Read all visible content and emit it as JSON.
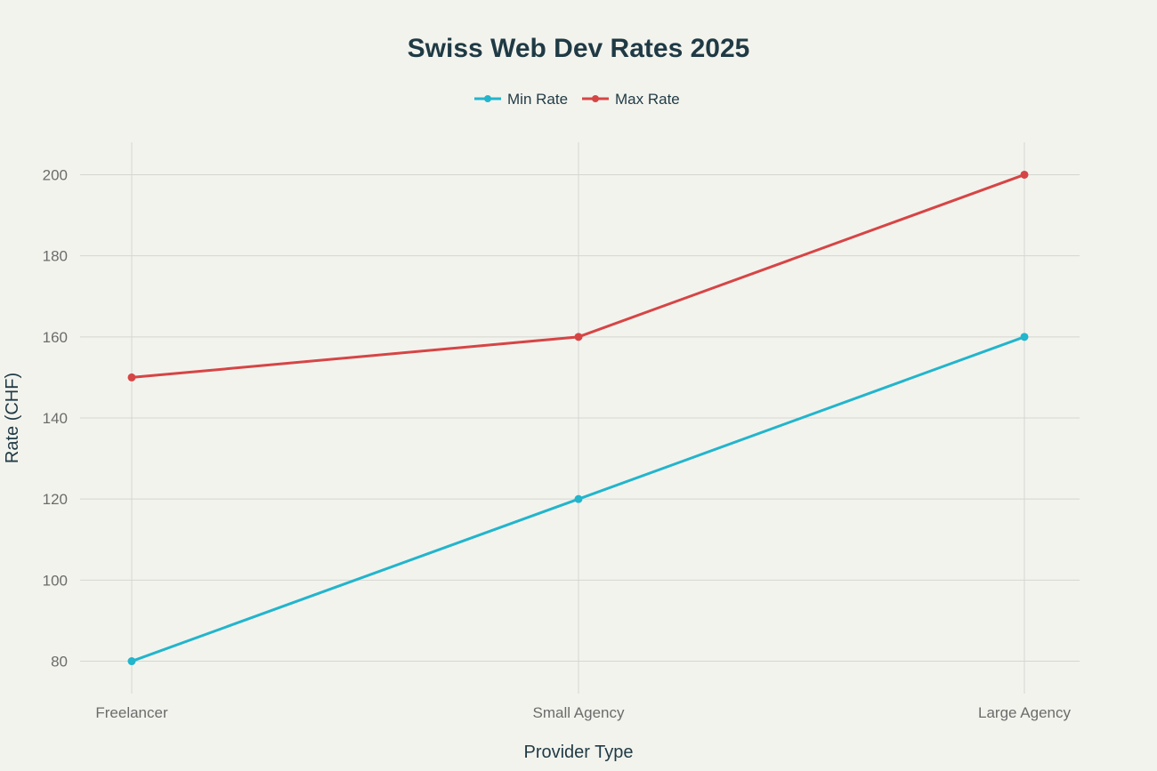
{
  "chart_data": {
    "type": "line",
    "title": "Swiss Web Dev Rates 2025",
    "xlabel": "Provider Type",
    "ylabel": "Rate (CHF)",
    "categories": [
      "Freelancer",
      "Small Agency",
      "Large Agency"
    ],
    "yticks": [
      80,
      100,
      120,
      140,
      160,
      180,
      200
    ],
    "ylim": [
      72,
      208
    ],
    "grid": true,
    "legend_position": "top-center",
    "series": [
      {
        "name": "Min Rate",
        "color": "#22b5cc",
        "values": [
          80,
          120,
          160
        ]
      },
      {
        "name": "Max Rate",
        "color": "#d64545",
        "values": [
          150,
          160,
          200
        ]
      }
    ]
  }
}
